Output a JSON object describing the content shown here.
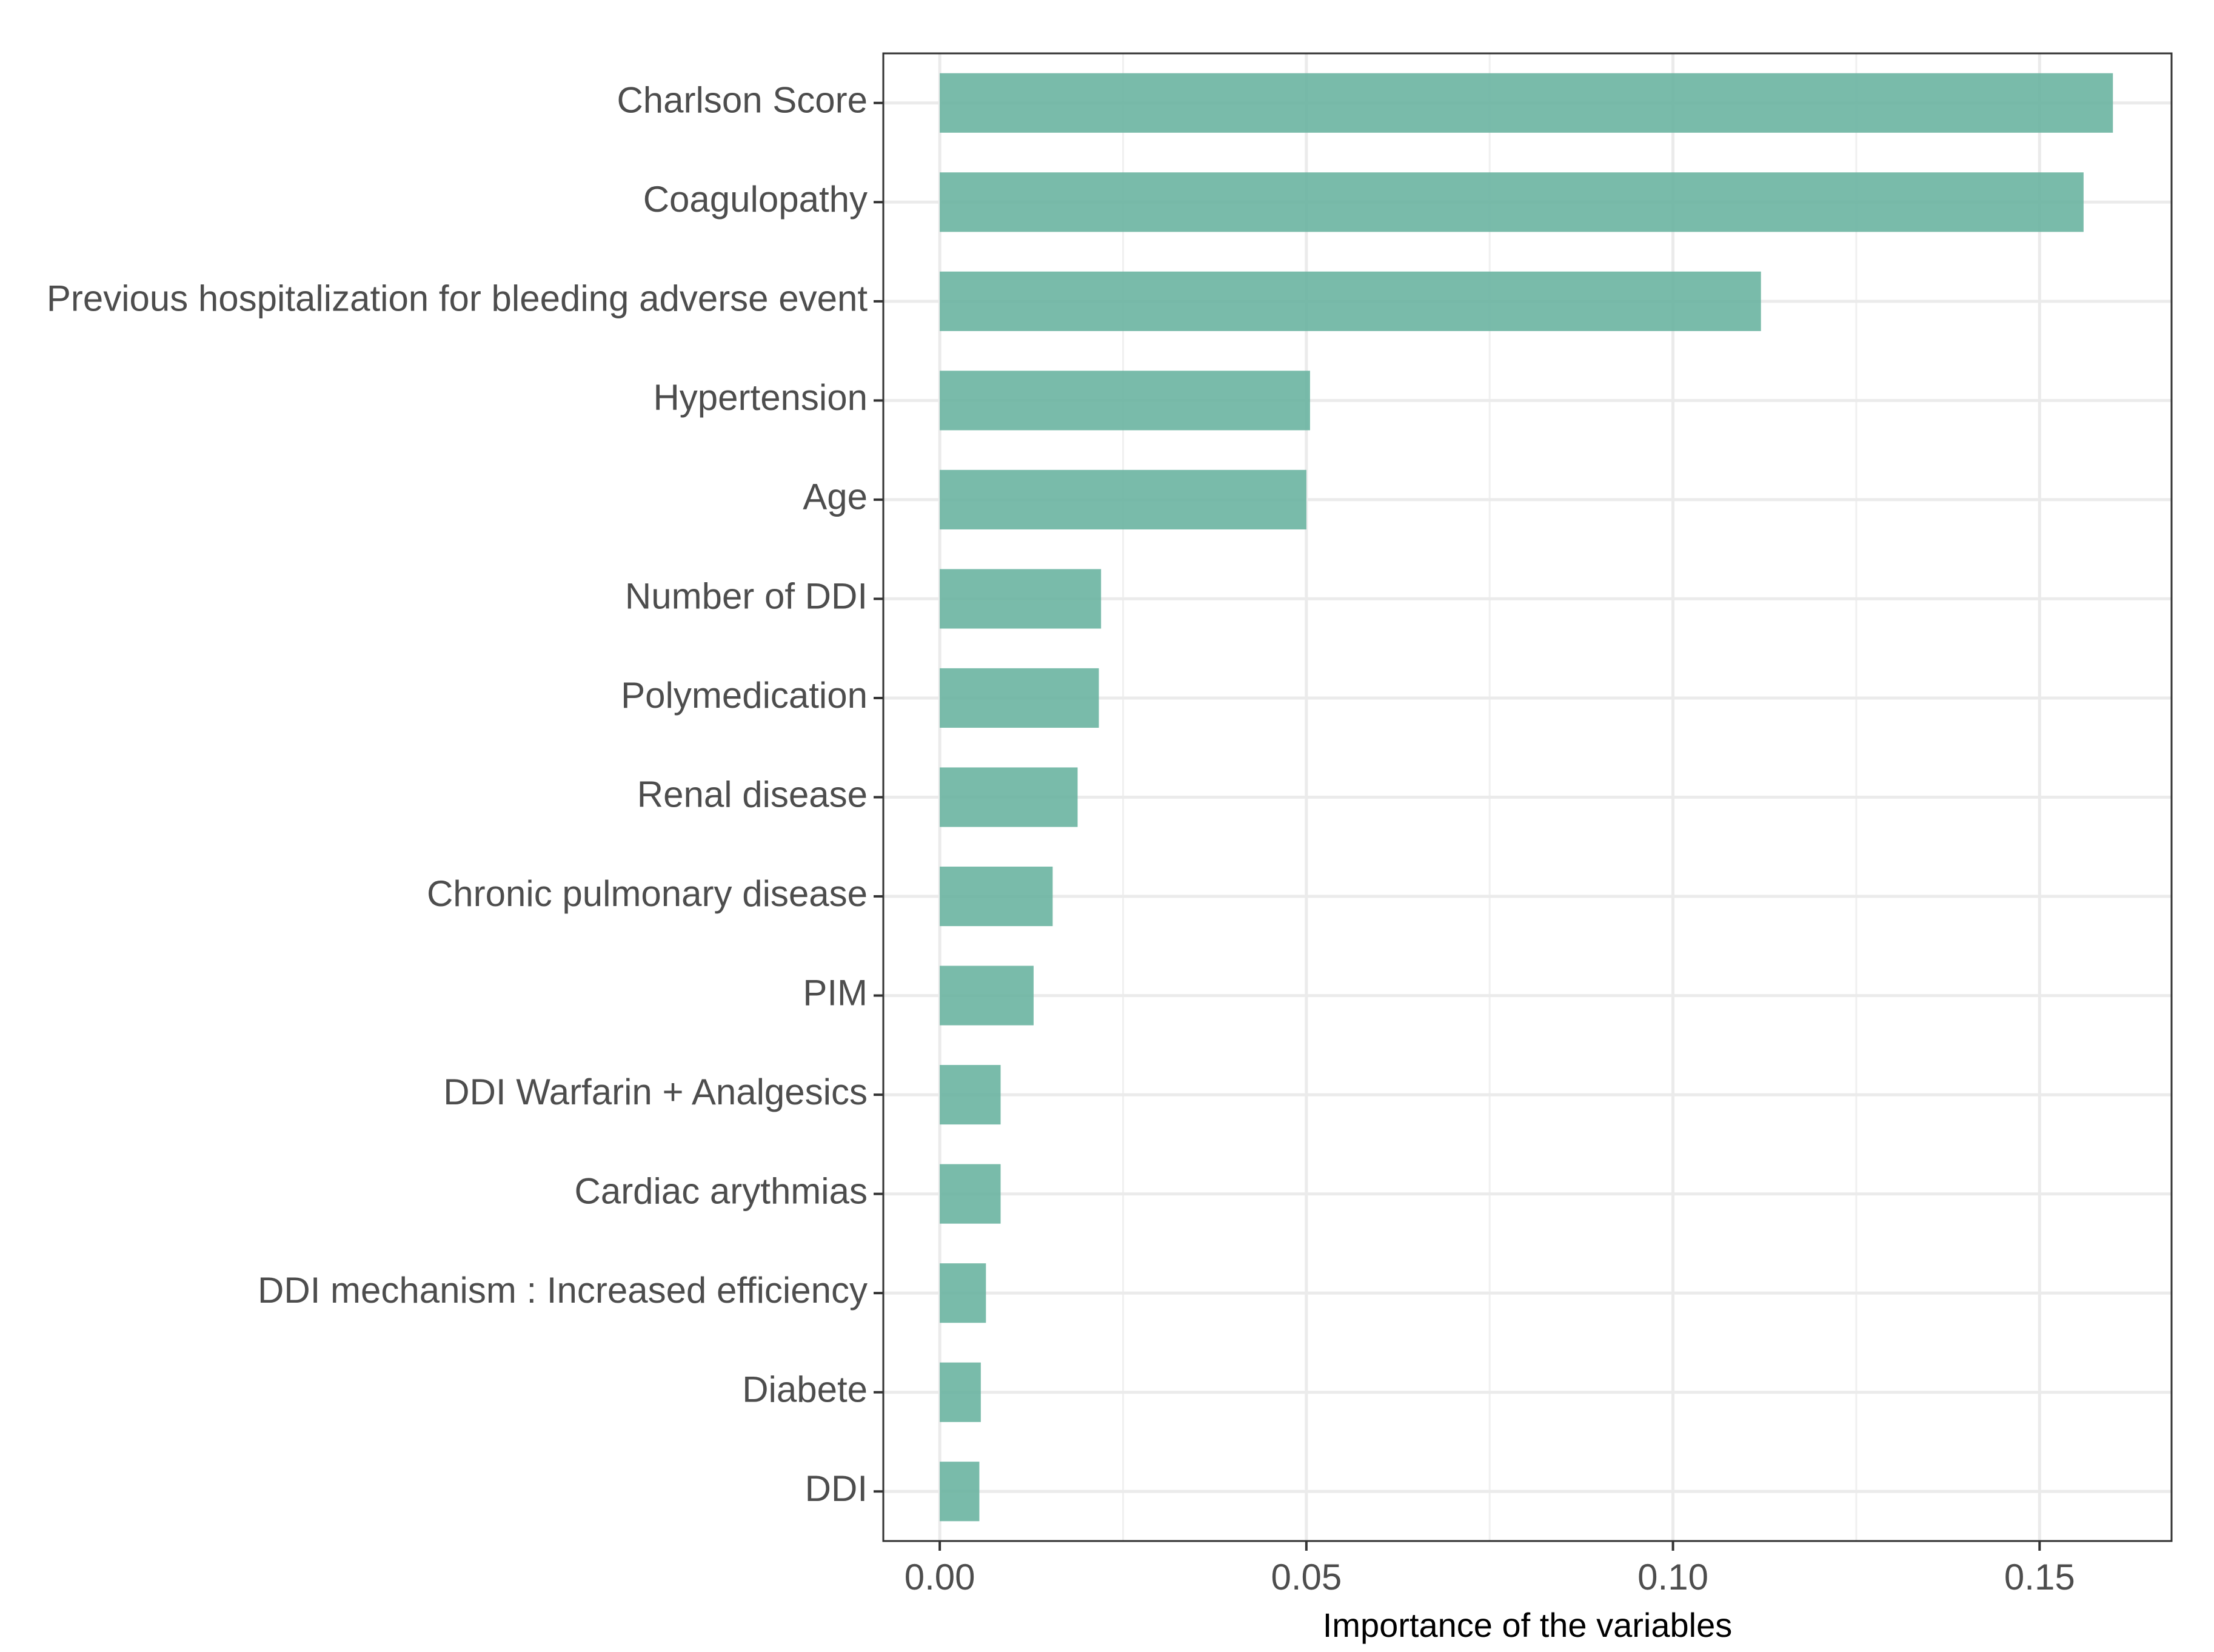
{
  "chart_data": {
    "type": "bar",
    "orientation": "horizontal",
    "title": "",
    "xlabel": "Importance of the variables",
    "ylabel": "",
    "xlim": [
      -0.0077,
      0.168
    ],
    "x_ticks": [
      0.0,
      0.05,
      0.1,
      0.15
    ],
    "x_tick_labels": [
      "0.00",
      "0.05",
      "0.10",
      "0.15"
    ],
    "grid": true,
    "categories": [
      "Charlson Score",
      "Coagulopathy",
      "Previous hospitalization for bleeding adverse event",
      "Hypertension",
      "Age",
      "Number of DDI",
      "Polymedication",
      "Renal disease",
      "Chronic pulmonary disease",
      "PIM",
      "DDI Warfarin + Analgesics",
      "Cardiac arythmias",
      "DDI mechanism : Increased efficiency",
      "Diabete",
      "DDI"
    ],
    "values": [
      0.16,
      0.156,
      0.112,
      0.0505,
      0.05,
      0.022,
      0.0217,
      0.0188,
      0.0154,
      0.0128,
      0.0083,
      0.0083,
      0.0063,
      0.0056,
      0.0054
    ],
    "bar_color": "#66b29e"
  }
}
